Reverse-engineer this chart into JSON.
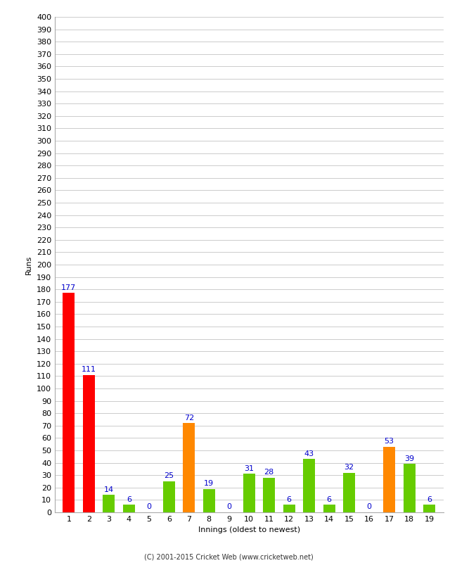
{
  "innings": [
    1,
    2,
    3,
    4,
    5,
    6,
    7,
    8,
    9,
    10,
    11,
    12,
    13,
    14,
    15,
    16,
    17,
    18,
    19
  ],
  "runs": [
    177,
    111,
    14,
    6,
    0,
    25,
    72,
    19,
    0,
    31,
    28,
    6,
    43,
    6,
    32,
    0,
    53,
    39,
    6
  ],
  "colors": [
    "#ff0000",
    "#ff0000",
    "#66cc00",
    "#66cc00",
    "#66cc00",
    "#66cc00",
    "#ff8800",
    "#66cc00",
    "#66cc00",
    "#66cc00",
    "#66cc00",
    "#66cc00",
    "#66cc00",
    "#66cc00",
    "#66cc00",
    "#66cc00",
    "#ff8800",
    "#66cc00",
    "#66cc00"
  ],
  "xlabel": "Innings (oldest to newest)",
  "ylabel": "Runs",
  "ylim": [
    0,
    400
  ],
  "ytick_step": 10,
  "label_color": "#0000cc",
  "background_color": "#ffffff",
  "grid_color": "#cccccc",
  "footer": "(C) 2001-2015 Cricket Web (www.cricketweb.net)",
  "bar_width": 0.6,
  "title_fontsize": 8,
  "tick_fontsize": 8,
  "label_fontsize": 8,
  "footer_fontsize": 7
}
